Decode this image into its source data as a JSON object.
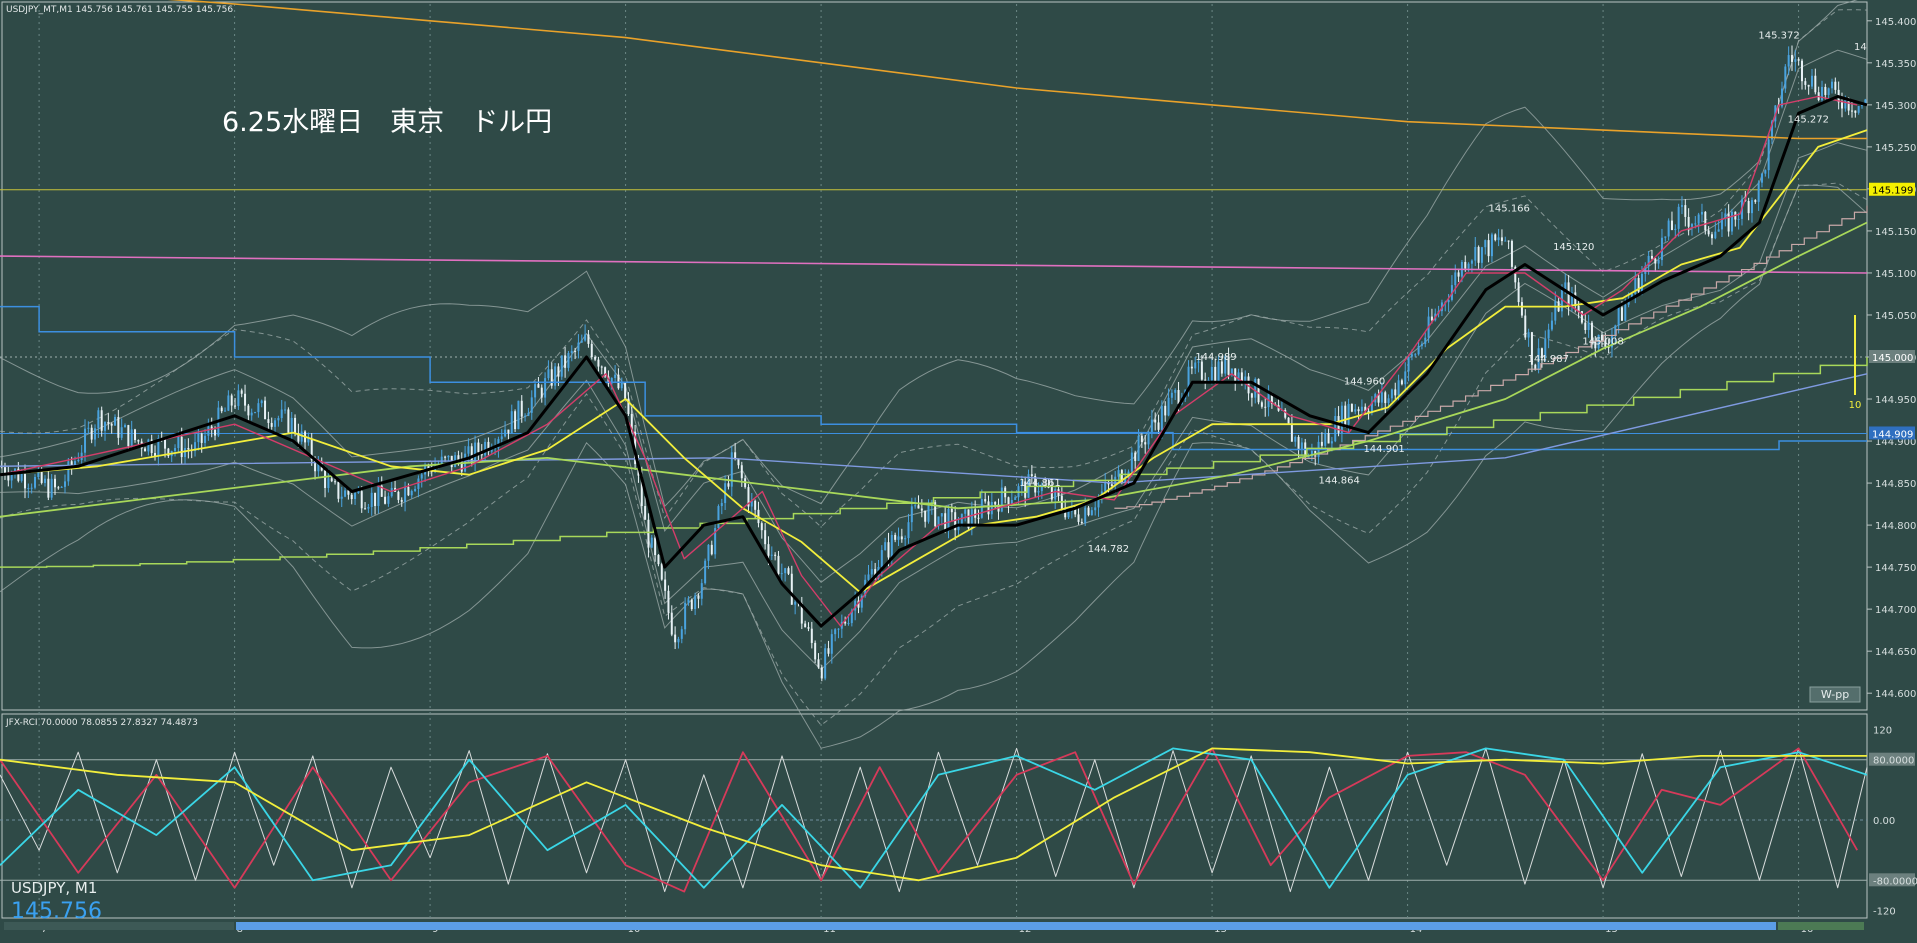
{
  "window": {
    "header": "USDJPY_MT,M1  145.756 145.761 145.755 145.756",
    "sub_header": "JFX-RCI 70.0000 78.0855 27.8327 74.4873",
    "annotation_title": "6.25水曜日　東京　ドル円",
    "symbol_label": "USDJPY, M1",
    "current_price": "145.756",
    "wpp_label": "W-pp",
    "right_edge_label": "14",
    "vertical_marker_label": "10"
  },
  "colors": {
    "background": "#2f4a47",
    "grid": "#6b8785",
    "axis_text": "#d6dede",
    "bull_candle": "#4aa3df",
    "bear_candle": "#e8f2f6",
    "ema_red": "#d43d6a",
    "ema_black": "#000000",
    "ema_yellow": "#f2ee3c",
    "ma_lime": "#a8d85a",
    "ma_orange": "#e9a22a",
    "line_magenta": "#e070c0",
    "line_blue": "#3c8fe0",
    "bands": "#9aa8a6",
    "rci_white": "#d8dcdc",
    "rci_red": "#d63a5a",
    "rci_cyan": "#3ad6e6",
    "rci_yellow": "#f2ee3c",
    "scroll_blue": "#5b9de6",
    "scroll_green": "#4c7a54"
  },
  "chart_data": [
    {
      "type": "line",
      "title": "USDJPY_MT,M1",
      "ylim": [
        144.58,
        145.42
      ],
      "y_ticks": [
        "145.400",
        "145.350",
        "145.300",
        "145.250",
        "145.200",
        "145.150",
        "145.100",
        "145.050",
        "145.000",
        "144.950",
        "144.900",
        "144.850",
        "144.800",
        "144.750",
        "144.700",
        "144.650",
        "144.600"
      ],
      "x_ticks": [
        "7",
        "8",
        "9",
        "10",
        "11",
        "12",
        "13",
        "14",
        "15",
        "16"
      ],
      "price_tags": [
        {
          "label": "145.199",
          "value": 145.199,
          "style": "yellow"
        },
        {
          "label": "145.000",
          "value": 145.0,
          "style": "gray"
        },
        {
          "label": "144.909",
          "value": 144.909,
          "style": "blue"
        }
      ],
      "annotations": [
        {
          "label": "145.372",
          "x": 15.9,
          "y": 145.372
        },
        {
          "label": "145.272",
          "x": 16.05,
          "y": 145.272
        },
        {
          "label": "145.166",
          "x": 14.52,
          "y": 145.166
        },
        {
          "label": "145.120",
          "x": 14.85,
          "y": 145.12
        },
        {
          "label": "145.008",
          "x": 15.0,
          "y": 145.008
        },
        {
          "label": "144.987",
          "x": 14.72,
          "y": 144.987
        },
        {
          "label": "144.989",
          "x": 13.02,
          "y": 144.989
        },
        {
          "label": "144.960",
          "x": 13.78,
          "y": 144.96
        },
        {
          "label": "144.901",
          "x": 13.88,
          "y": 144.901
        },
        {
          "label": "144.864",
          "x": 13.65,
          "y": 144.864
        },
        {
          "label": "144.861",
          "x": 12.12,
          "y": 144.861
        },
        {
          "label": "144.782",
          "x": 12.47,
          "y": 144.782
        }
      ],
      "series": [
        {
          "role": "price",
          "color_key": "bull_candle",
          "x": [
            6.8,
            7.1,
            7.3,
            7.5,
            7.8,
            8.0,
            8.3,
            8.5,
            8.8,
            9.0,
            9.2,
            9.4,
            9.6,
            9.8,
            10.0,
            10.1,
            10.25,
            10.4,
            10.55,
            10.7,
            10.85,
            11.0,
            11.15,
            11.3,
            11.5,
            11.7,
            11.9,
            12.1,
            12.3,
            12.5,
            12.7,
            12.9,
            13.1,
            13.3,
            13.5,
            13.7,
            13.9,
            14.1,
            14.3,
            14.5,
            14.65,
            14.8,
            15.0,
            15.2,
            15.4,
            15.6,
            15.8,
            15.95,
            16.1,
            16.3
          ],
          "y": [
            144.87,
            144.84,
            144.93,
            144.9,
            144.89,
            144.95,
            144.92,
            144.84,
            144.83,
            144.87,
            144.88,
            144.92,
            144.97,
            145.02,
            144.95,
            144.8,
            144.67,
            144.74,
            144.88,
            144.79,
            144.72,
            144.63,
            144.7,
            144.76,
            144.82,
            144.8,
            144.83,
            144.85,
            144.81,
            144.85,
            144.92,
            144.98,
            144.99,
            144.94,
            144.88,
            144.94,
            144.95,
            145.03,
            145.12,
            145.14,
            144.99,
            145.08,
            145.01,
            145.1,
            145.17,
            145.15,
            145.2,
            145.36,
            145.32,
            145.3
          ]
        },
        {
          "role": "ema_fast",
          "color_key": "ema_red",
          "x": [
            6.8,
            7.2,
            7.6,
            8.0,
            8.4,
            8.8,
            9.2,
            9.6,
            9.9,
            10.1,
            10.3,
            10.5,
            10.7,
            10.9,
            11.1,
            11.3,
            11.6,
            11.9,
            12.2,
            12.5,
            12.8,
            13.1,
            13.4,
            13.7,
            14.0,
            14.3,
            14.6,
            14.9,
            15.1,
            15.4,
            15.7,
            15.9,
            16.1,
            16.3
          ],
          "y": [
            144.86,
            144.88,
            144.9,
            144.92,
            144.88,
            144.84,
            144.87,
            144.92,
            144.98,
            144.88,
            144.76,
            144.8,
            144.84,
            144.74,
            144.68,
            144.74,
            144.8,
            144.82,
            144.84,
            144.83,
            144.93,
            144.98,
            144.93,
            144.91,
            145.0,
            145.1,
            145.1,
            145.05,
            145.08,
            145.15,
            145.17,
            145.3,
            145.31,
            145.3
          ]
        },
        {
          "role": "ema_slow",
          "color_key": "ema_black",
          "x": [
            6.8,
            7.2,
            7.6,
            8.0,
            8.3,
            8.6,
            8.9,
            9.2,
            9.5,
            9.8,
            10.0,
            10.2,
            10.4,
            10.6,
            10.8,
            11.0,
            11.2,
            11.4,
            11.7,
            12.0,
            12.3,
            12.6,
            12.9,
            13.2,
            13.5,
            13.8,
            14.1,
            14.4,
            14.6,
            14.8,
            15.0,
            15.3,
            15.6,
            15.8,
            16.0,
            16.2,
            16.35
          ],
          "y": [
            144.86,
            144.87,
            144.9,
            144.93,
            144.9,
            144.84,
            144.86,
            144.88,
            144.91,
            145.0,
            144.93,
            144.75,
            144.8,
            144.81,
            144.73,
            144.68,
            144.72,
            144.77,
            144.8,
            144.8,
            144.82,
            144.85,
            144.97,
            144.97,
            144.93,
            144.91,
            144.98,
            145.08,
            145.11,
            145.08,
            145.05,
            145.09,
            145.12,
            145.16,
            145.29,
            145.31,
            145.3
          ]
        },
        {
          "role": "ema_yellow",
          "color_key": "ema_yellow",
          "x": [
            6.8,
            7.3,
            7.8,
            8.3,
            8.8,
            9.2,
            9.6,
            10.0,
            10.3,
            10.6,
            10.9,
            11.2,
            11.5,
            11.8,
            12.1,
            12.4,
            12.7,
            13.0,
            13.3,
            13.6,
            13.9,
            14.2,
            14.5,
            14.8,
            15.1,
            15.4,
            15.7,
            15.9,
            16.1,
            16.35
          ],
          "y": [
            144.86,
            144.87,
            144.89,
            144.91,
            144.87,
            144.86,
            144.89,
            144.95,
            144.88,
            144.82,
            144.78,
            144.72,
            144.76,
            144.8,
            144.81,
            144.83,
            144.88,
            144.92,
            144.92,
            144.92,
            144.94,
            145.01,
            145.06,
            145.06,
            145.07,
            145.11,
            145.13,
            145.19,
            145.25,
            145.27
          ]
        },
        {
          "role": "ma_lime",
          "color_key": "ma_lime",
          "x": [
            6.8,
            7.5,
            8.2,
            8.9,
            9.6,
            10.3,
            11.0,
            11.7,
            12.4,
            13.1,
            13.8,
            14.5,
            15.0,
            15.5,
            16.0,
            16.35
          ],
          "y": [
            144.81,
            144.83,
            144.85,
            144.87,
            144.88,
            144.86,
            144.84,
            144.82,
            144.83,
            144.86,
            144.9,
            144.95,
            145.01,
            145.06,
            145.12,
            145.16
          ]
        },
        {
          "role": "ma_orange",
          "color_key": "ma_orange",
          "x": [
            6.8,
            8.0,
            9.0,
            10.0,
            11.0,
            12.0,
            13.0,
            14.0,
            15.0,
            16.0,
            16.35
          ],
          "y": [
            145.44,
            145.42,
            145.4,
            145.38,
            145.35,
            145.32,
            145.3,
            145.28,
            145.27,
            145.26,
            145.26
          ]
        },
        {
          "role": "line_magenta",
          "color_key": "line_magenta",
          "x": [
            6.8,
            16.35
          ],
          "y": [
            145.12,
            145.1
          ]
        }
      ]
    },
    {
      "type": "line",
      "title": "JFX-RCI 70.0000 78.0855 27.8327 74.4873",
      "ylim": [
        -130,
        130
      ],
      "y_ticks": [
        "120",
        "80.0000",
        "0.00",
        "-80.0000",
        "-120"
      ],
      "series": [
        {
          "role": "rci_white",
          "color_key": "rci_white",
          "x": [
            6.8,
            7.0,
            7.2,
            7.4,
            7.6,
            7.8,
            8.0,
            8.2,
            8.4,
            8.6,
            8.8,
            9.0,
            9.2,
            9.4,
            9.6,
            9.8,
            10.0,
            10.2,
            10.4,
            10.6,
            10.8,
            11.0,
            11.2,
            11.4,
            11.6,
            11.8,
            12.0,
            12.2,
            12.4,
            12.6,
            12.8,
            13.0,
            13.2,
            13.4,
            13.6,
            13.8,
            14.0,
            14.2,
            14.4,
            14.6,
            14.8,
            15.0,
            15.2,
            15.4,
            15.6,
            15.8,
            16.0,
            16.2,
            16.35
          ],
          "y": [
            60,
            -40,
            90,
            -70,
            80,
            -80,
            90,
            -60,
            85,
            -90,
            70,
            -50,
            92,
            -85,
            88,
            -70,
            80,
            -95,
            60,
            -90,
            85,
            -80,
            70,
            -95,
            90,
            -60,
            95,
            -75,
            80,
            -90,
            92,
            -70,
            85,
            -95,
            70,
            -80,
            90,
            -60,
            95,
            -85,
            80,
            -90,
            88,
            -75,
            92,
            -80,
            95,
            -90,
            70
          ]
        },
        {
          "role": "rci_red",
          "color_key": "rci_red",
          "x": [
            6.8,
            7.2,
            7.6,
            8.0,
            8.4,
            8.8,
            9.2,
            9.6,
            10.0,
            10.3,
            10.6,
            11.0,
            11.3,
            11.6,
            12.0,
            12.3,
            12.6,
            13.0,
            13.3,
            13.6,
            14.0,
            14.3,
            14.6,
            15.0,
            15.3,
            15.6,
            16.0,
            16.3
          ],
          "y": [
            80,
            -70,
            60,
            -90,
            70,
            -80,
            50,
            85,
            -60,
            -95,
            90,
            -80,
            70,
            -70,
            60,
            90,
            -85,
            95,
            -60,
            30,
            85,
            90,
            60,
            -80,
            40,
            20,
            95,
            -40
          ]
        },
        {
          "role": "rci_cyan",
          "color_key": "rci_cyan",
          "x": [
            6.8,
            7.2,
            7.6,
            8.0,
            8.4,
            8.8,
            9.2,
            9.6,
            10.0,
            10.4,
            10.8,
            11.2,
            11.6,
            12.0,
            12.4,
            12.8,
            13.2,
            13.6,
            14.0,
            14.4,
            14.8,
            15.2,
            15.6,
            16.0,
            16.35
          ],
          "y": [
            -60,
            40,
            -20,
            70,
            -80,
            -60,
            80,
            -40,
            20,
            -90,
            20,
            -90,
            60,
            85,
            40,
            95,
            80,
            -90,
            60,
            95,
            80,
            -70,
            70,
            90,
            60
          ]
        },
        {
          "role": "rci_yellow",
          "color_key": "rci_yellow",
          "x": [
            6.8,
            7.4,
            8.0,
            8.6,
            9.2,
            9.8,
            10.4,
            11.0,
            11.5,
            12.0,
            12.5,
            13.0,
            13.5,
            14.0,
            14.5,
            15.0,
            15.5,
            16.0,
            16.35
          ],
          "y": [
            80,
            60,
            50,
            -40,
            -20,
            50,
            -10,
            -60,
            -80,
            -50,
            30,
            95,
            90,
            75,
            80,
            75,
            85,
            85,
            85
          ]
        }
      ]
    }
  ]
}
